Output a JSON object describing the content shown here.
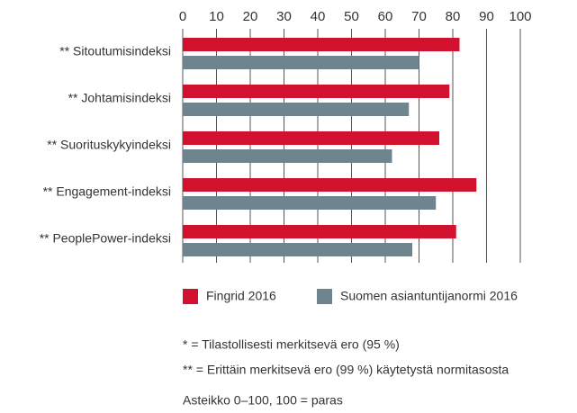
{
  "chart_data": {
    "type": "bar",
    "orientation": "horizontal",
    "categories": [
      "** Sitoutumisindeksi",
      "** Johtamisindeksi",
      "** Suorituskykyindeksi",
      "** Engagement-indeksi",
      "** PeoplePower-indeksi"
    ],
    "series": [
      {
        "name": "Fingrid 2016",
        "color": "#d2112e",
        "values": [
          82,
          79,
          76,
          87,
          81
        ]
      },
      {
        "name": "Suomen asiantuntijanormi 2016",
        "color": "#6e8590",
        "values": [
          70,
          67,
          62,
          75,
          68
        ]
      }
    ],
    "xlim": [
      0,
      100
    ],
    "xticks": [
      0,
      10,
      20,
      30,
      40,
      50,
      60,
      70,
      80,
      90,
      100
    ],
    "grid": true,
    "notes": [
      "* = Tilastollisesti merkitsevä ero (95 %)",
      "** = Erittäin merkitsevä ero (99 %) käytetystä normitasosta",
      "Asteikko 0–100, 100 = paras"
    ]
  }
}
